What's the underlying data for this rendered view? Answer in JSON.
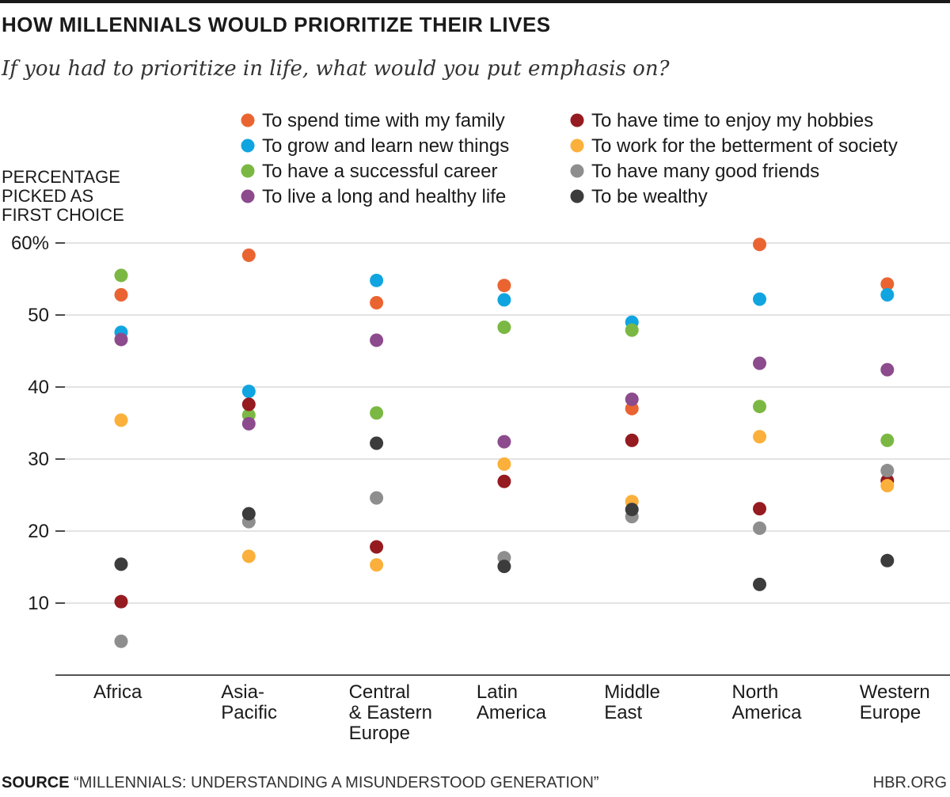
{
  "header": {
    "title": "HOW MILLENNIALS WOULD PRIORITIZE THEIR LIVES",
    "subtitle": "If you had to prioritize in life, what would you put emphasis on?"
  },
  "footer": {
    "source_label": "SOURCE",
    "source_text": "“MILLENNIALS: UNDERSTANDING A MISUNDERSTOOD GENERATION”",
    "credit": "HBR.ORG"
  },
  "chart_data": {
    "type": "scatter",
    "title": "HOW MILLENNIALS WOULD PRIORITIZE THEIR LIVES",
    "subtitle": "If you had to prioritize in life, what would you put emphasis on?",
    "ylabel_lines": [
      "PERCENTAGE",
      "PICKED AS",
      "FIRST CHOICE"
    ],
    "xlabel": "",
    "ylim": [
      0,
      60
    ],
    "yticks": [
      10,
      20,
      30,
      40,
      50,
      60
    ],
    "ytick_labels": [
      "10",
      "20",
      "30",
      "40",
      "50",
      "60%"
    ],
    "grid": true,
    "legend_position": "top",
    "categories": [
      "Africa",
      "Asia-Pacific",
      "Central & Eastern Europe",
      "Latin America",
      "Middle East",
      "North America",
      "Western Europe"
    ],
    "category_label_lines": [
      [
        "Africa"
      ],
      [
        "Asia-",
        "Pacific"
      ],
      [
        "Central",
        "& Eastern",
        "Europe"
      ],
      [
        "Latin",
        "America"
      ],
      [
        "Middle",
        "East"
      ],
      [
        "North",
        "America"
      ],
      [
        "Western",
        "Europe"
      ]
    ],
    "series": [
      {
        "name": "To spend time with my family",
        "color": "#ea6431",
        "values": [
          52.8,
          58.3,
          51.7,
          54.1,
          37.0,
          59.8,
          54.3
        ]
      },
      {
        "name": "To grow and learn new things",
        "color": "#10a5e0",
        "values": [
          47.6,
          39.4,
          54.8,
          52.1,
          49.0,
          52.2,
          52.8
        ]
      },
      {
        "name": "To have a successful career",
        "color": "#7bb843",
        "values": [
          55.5,
          36.1,
          36.4,
          48.3,
          47.9,
          37.3,
          32.6
        ]
      },
      {
        "name": "To live a long and healthy life",
        "color": "#8c4b8d",
        "values": [
          46.6,
          34.9,
          46.5,
          32.4,
          38.3,
          43.3,
          42.4
        ]
      },
      {
        "name": "To have time to enjoy my hobbies",
        "color": "#951b20",
        "values": [
          10.2,
          37.6,
          17.8,
          26.9,
          32.6,
          23.1,
          27.0
        ]
      },
      {
        "name": "To work for the betterment of society",
        "color": "#fbb03b",
        "values": [
          35.4,
          16.5,
          15.3,
          29.3,
          24.1,
          33.1,
          26.3
        ]
      },
      {
        "name": "To have many good friends",
        "color": "#8e8e8e",
        "values": [
          4.7,
          21.3,
          24.6,
          16.3,
          22.0,
          20.4,
          28.4
        ]
      },
      {
        "name": "To be wealthy",
        "color": "#3c3c3c",
        "values": [
          15.4,
          22.4,
          32.2,
          15.1,
          23.0,
          12.6,
          15.9
        ]
      }
    ]
  }
}
